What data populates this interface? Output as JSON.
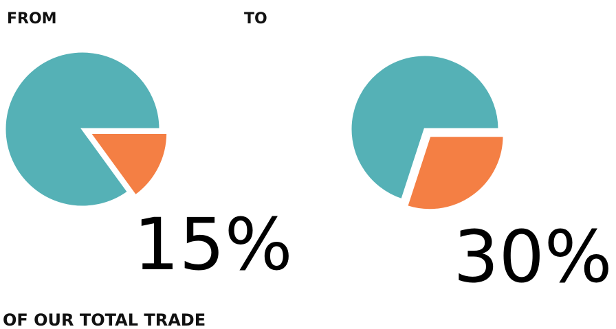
{
  "chart_data": [
    {
      "type": "pie",
      "title": "FROM",
      "values": [
        85,
        15
      ],
      "value_labels": [
        null,
        "15%"
      ],
      "colors": [
        "#55b1b6",
        "#f47f44"
      ]
    },
    {
      "type": "pie",
      "title": "TO",
      "values": [
        70,
        30
      ],
      "value_labels": [
        null,
        "30%"
      ],
      "colors": [
        "#55b1b6",
        "#f47f44"
      ]
    }
  ],
  "caption": "OF OUR TOTAL TRADE"
}
